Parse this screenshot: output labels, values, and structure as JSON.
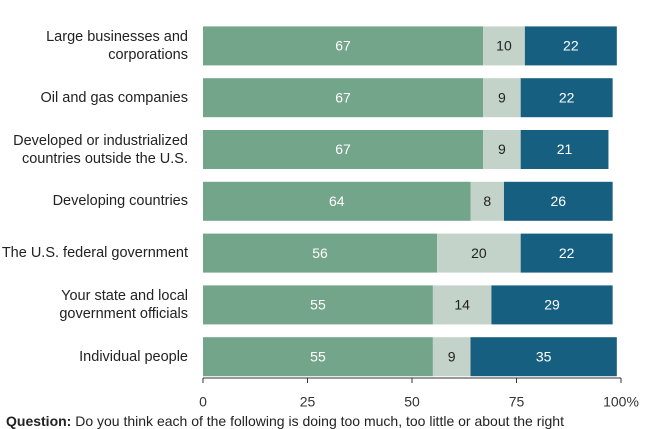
{
  "chart_data": {
    "type": "stacked_barh",
    "categories": [
      "Large businesses and corporations",
      "Oil and gas companies",
      "Developed or industrialized countries outside the U.S.",
      "Developing countries",
      "The U.S. federal government",
      "Your state and local government officials",
      "Individual people"
    ],
    "series": [
      {
        "color": "#73a58a",
        "values": [
          67,
          67,
          67,
          64,
          56,
          55,
          55
        ]
      },
      {
        "color": "#c3d3c9",
        "values": [
          10,
          9,
          9,
          8,
          20,
          14,
          9
        ]
      },
      {
        "color": "#175f80",
        "values": [
          22,
          22,
          21,
          26,
          22,
          29,
          35
        ]
      }
    ],
    "xlim": [
      0,
      100
    ],
    "xticks": [
      0,
      25,
      50,
      75,
      {
        "value": 100,
        "label": "100%"
      }
    ],
    "question_label": "Question:",
    "question_text": "Do you think each of the following is doing too much, too little or about the right"
  }
}
